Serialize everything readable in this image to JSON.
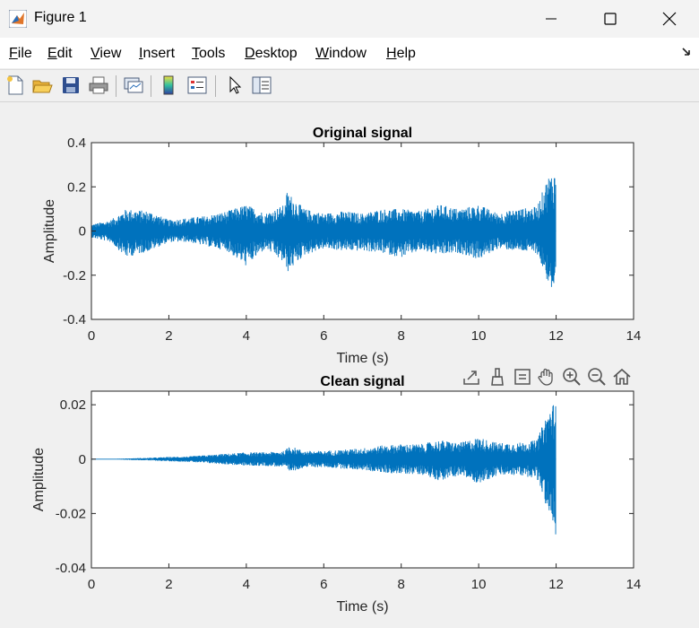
{
  "window": {
    "title": "Figure 1"
  },
  "menu": [
    "File",
    "Edit",
    "View",
    "Insert",
    "Tools",
    "Desktop",
    "Window",
    "Help"
  ],
  "toolbar_icons": [
    "new-figure-icon",
    "open-file-icon",
    "save-icon",
    "print-icon",
    "link-plot-icon",
    "insert-colorbar-icon",
    "insert-legend-icon",
    "edit-plot-arrow-icon",
    "property-inspector-icon"
  ],
  "axes_toolbar_icons": [
    "export-icon",
    "brush-icon",
    "data-tips-icon",
    "pan-icon",
    "zoom-in-icon",
    "zoom-out-icon",
    "restore-view-icon"
  ],
  "colors": {
    "line": "#0072BD",
    "background": "#f0f0f0",
    "axes_bg": "#ffffff"
  },
  "chart_data": [
    {
      "type": "line",
      "title": "Original signal",
      "xlabel": "Time (s)",
      "ylabel": "Amplitude",
      "xlim": [
        0,
        14
      ],
      "ylim": [
        -0.4,
        0.4
      ],
      "xticks": [
        "0",
        "2",
        "4",
        "6",
        "8",
        "10",
        "12",
        "14"
      ],
      "yticks": [
        "-0.4",
        "-0.2",
        "0",
        "0.2",
        "0.4"
      ],
      "grid": false,
      "series": [
        {
          "color": "#0072BD",
          "x": [
            0,
            0.5,
            0.9,
            1.5,
            2,
            2.5,
            3,
            3.5,
            4,
            4.5,
            5,
            5.05,
            5.5,
            6,
            6.5,
            7,
            7.5,
            8,
            8.5,
            9,
            9.5,
            10,
            10.5,
            11,
            11.5,
            11.8,
            12,
            12.05
          ],
          "y_max": [
            0.03,
            0.05,
            0.1,
            0.09,
            0.05,
            0.06,
            0.07,
            0.09,
            0.12,
            0.08,
            0.12,
            0.18,
            0.1,
            0.08,
            0.09,
            0.08,
            0.1,
            0.1,
            0.09,
            0.12,
            0.1,
            0.12,
            0.08,
            0.1,
            0.11,
            0.25,
            0.28,
            0.0
          ],
          "y_min": [
            -0.03,
            -0.05,
            -0.12,
            -0.09,
            -0.05,
            -0.05,
            -0.07,
            -0.09,
            -0.16,
            -0.08,
            -0.15,
            -0.19,
            -0.11,
            -0.08,
            -0.09,
            -0.09,
            -0.1,
            -0.12,
            -0.09,
            -0.11,
            -0.1,
            -0.13,
            -0.08,
            -0.09,
            -0.1,
            -0.24,
            -0.32,
            0.0
          ]
        }
      ]
    },
    {
      "type": "line",
      "title": "Clean signal",
      "xlabel": "Time (s)",
      "ylabel": "Amplitude",
      "xlim": [
        0,
        14
      ],
      "ylim": [
        -0.04,
        0.025
      ],
      "xticks": [
        "0",
        "2",
        "4",
        "6",
        "8",
        "10",
        "12",
        "14"
      ],
      "yticks": [
        "-0.04",
        "-0.02",
        "0",
        "0.02"
      ],
      "grid": false,
      "series": [
        {
          "color": "#0072BD",
          "x": [
            0,
            0.5,
            1,
            1.5,
            2,
            2.5,
            3,
            3.5,
            4,
            4.5,
            5,
            5.1,
            5.5,
            6,
            6.5,
            7,
            7.5,
            8,
            8.5,
            9,
            9.5,
            10,
            10.5,
            11,
            11.5,
            11.8,
            12,
            12.05
          ],
          "y_max": [
            0,
            0.0001,
            0.0003,
            0.0005,
            0.0008,
            0.001,
            0.0015,
            0.002,
            0.0025,
            0.0025,
            0.003,
            0.005,
            0.003,
            0.003,
            0.0035,
            0.004,
            0.005,
            0.0055,
            0.0055,
            0.007,
            0.006,
            0.008,
            0.006,
            0.006,
            0.007,
            0.018,
            0.022,
            0
          ],
          "y_min": [
            0,
            -0.0001,
            -0.0003,
            -0.0005,
            -0.0008,
            -0.001,
            -0.0015,
            -0.002,
            -0.0025,
            -0.0025,
            -0.003,
            -0.005,
            -0.003,
            -0.003,
            -0.0035,
            -0.004,
            -0.005,
            -0.0055,
            -0.0055,
            -0.008,
            -0.006,
            -0.009,
            -0.006,
            -0.006,
            -0.007,
            -0.02,
            -0.029,
            0
          ]
        }
      ]
    }
  ]
}
